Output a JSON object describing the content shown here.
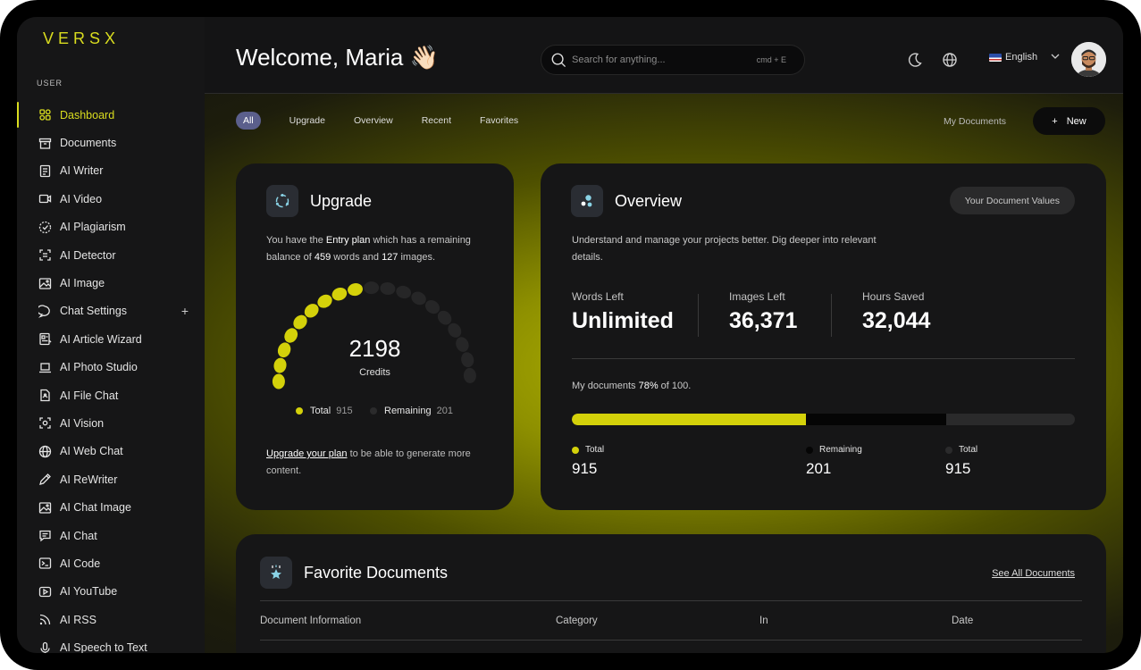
{
  "brand": "VERSX",
  "sidebar": {
    "section": "USER",
    "items": [
      {
        "label": "Dashboard",
        "icon": "grid-icon",
        "active": true
      },
      {
        "label": "Documents",
        "icon": "archive-icon"
      },
      {
        "label": "AI Writer",
        "icon": "document-icon"
      },
      {
        "label": "AI Video",
        "icon": "video-icon"
      },
      {
        "label": "AI Plagiarism",
        "icon": "check-circle-icon"
      },
      {
        "label": "AI Detector",
        "icon": "scan-icon"
      },
      {
        "label": "AI Image",
        "icon": "image-icon"
      },
      {
        "label": "Chat Settings",
        "icon": "chat-icon",
        "plus": "+"
      },
      {
        "label": "AI Article Wizard",
        "icon": "article-icon"
      },
      {
        "label": "AI Photo Studio",
        "icon": "laptop-icon"
      },
      {
        "label": "AI File Chat",
        "icon": "file-icon"
      },
      {
        "label": "AI Vision",
        "icon": "eye-scan-icon"
      },
      {
        "label": "AI Web Chat",
        "icon": "globe-icon"
      },
      {
        "label": "AI ReWriter",
        "icon": "pen-icon"
      },
      {
        "label": "AI Chat Image",
        "icon": "image-icon"
      },
      {
        "label": "AI Chat",
        "icon": "chat-square-icon"
      },
      {
        "label": "AI Code",
        "icon": "terminal-icon"
      },
      {
        "label": "AI YouTube",
        "icon": "play-icon"
      },
      {
        "label": "AI RSS",
        "icon": "rss-icon"
      },
      {
        "label": "AI Speech to Text",
        "icon": "mic-icon"
      }
    ]
  },
  "header": {
    "welcome": "Welcome, Maria",
    "wave": "👋🏻",
    "search_placeholder": "Search for anything...",
    "search_shortcut": "cmd + E",
    "language": "English"
  },
  "tabs": {
    "items": [
      "All",
      "Upgrade",
      "Overview",
      "Recent",
      "Favorites"
    ],
    "my_documents": "My Documents",
    "new_label": "New"
  },
  "upgrade": {
    "title": "Upgrade",
    "text_1": "You have the ",
    "plan": "Entry plan",
    "text_2": " which has a remaining balance of ",
    "words": "459",
    "text_3": " words and ",
    "images": "127",
    "text_4": " images.",
    "credits": "2198",
    "credits_label": "Credits",
    "gauge_filled_fraction": 0.45,
    "total_label": "Total",
    "total_value": "915",
    "remaining_label": "Remaining",
    "remaining_value": "201",
    "footer_link": "Upgrade your plan",
    "footer_text": " to be able to generate more content."
  },
  "overview": {
    "title": "Overview",
    "button": "Your Document Values",
    "description": "Understand and manage your projects better. Dig deeper into relevant details.",
    "stats": [
      {
        "label": "Words Left",
        "value": "Unlimited"
      },
      {
        "label": "Images Left",
        "value": "36,371"
      },
      {
        "label": "Hours Saved",
        "value": "32,044"
      }
    ],
    "docs_prefix": "My documents ",
    "docs_percent": "78%",
    "docs_suffix": " of 100.",
    "bar_segments": [
      0.465,
      0.28
    ],
    "bar_legend": [
      {
        "label": "Total",
        "value": "915"
      },
      {
        "label": "Remaining",
        "value": "201"
      },
      {
        "label": "Total",
        "value": "915"
      }
    ]
  },
  "favorites": {
    "title": "Favorite Documents",
    "see_all": "See All Documents",
    "columns": [
      "Document Information",
      "Category",
      "In",
      "Date"
    ]
  },
  "colors": {
    "accent": "#d4d10a",
    "purple": "#5b5f8c"
  }
}
